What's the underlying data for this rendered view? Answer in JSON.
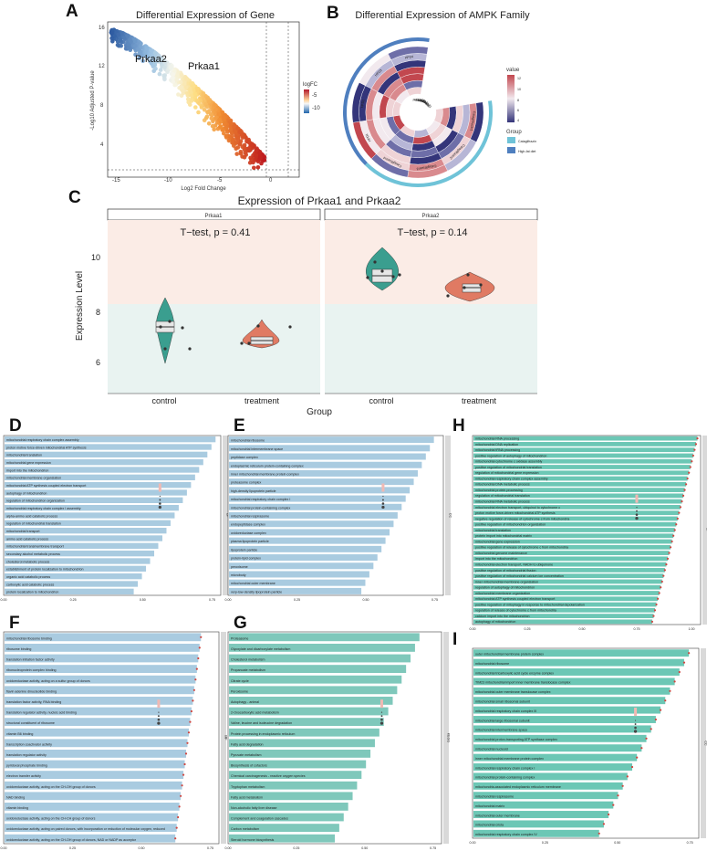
{
  "panels": {
    "a": "A",
    "b": "B",
    "c": "C",
    "d": "D",
    "e": "E",
    "f": "F",
    "g": "G",
    "h": "H",
    "i": "I"
  },
  "panel_a": {
    "title": "Differential Expression of Gene",
    "xlabel": "Log2 Fold Change",
    "ylabel": "-Log10 Adjusted P-value",
    "legend_title": "logFC",
    "legend_ticks": [
      "-5",
      "-10"
    ],
    "x_ticks": [
      "-15",
      "-10",
      "-5",
      "0"
    ],
    "y_ticks": [
      "16",
      "12",
      "8",
      "4"
    ],
    "labels": [
      "Prkaa2",
      "Prkaa1"
    ]
  },
  "panel_b": {
    "title": "Differential Expression of AMPK Family",
    "legend_value_title": "value",
    "legend_value_ticks": [
      "12",
      "10",
      "8",
      "6",
      "4"
    ],
    "legend_group_title": "Group",
    "groups": [
      "Cataglifrazin",
      "High-fat diet"
    ],
    "sample_labels": [
      "Cataglifrazin1",
      "Cataglifrazin2",
      "Cataglifrazin3",
      "Cataglifrazin4",
      "HFD1",
      "HFD2",
      "HFD3",
      "HFD4"
    ],
    "genes": [
      "Prkaa1",
      "Prkaa2",
      "Prkab1",
      "Prkab2",
      "Prkag1",
      "Prkag2",
      "Prkag3"
    ]
  },
  "panel_c": {
    "title": "Expression of Prkaa1 and Prkaa2",
    "ylabel": "Expression Level",
    "xlabel": "Group",
    "y_ticks": [
      "10",
      "8",
      "6"
    ],
    "facets": [
      {
        "name": "Prkaa1",
        "test": "T−test, p = 0.41"
      },
      {
        "name": "Prkaa2",
        "test": "T−test, p = 0.14"
      }
    ],
    "categories": [
      "control",
      "treatment"
    ]
  },
  "panel_d": {
    "terms": [
      "mitochondrial respiratory chain complex assembly",
      "proton motive force-driven mitochondrial ATP synthesis",
      "mitochondrial translation",
      "mitochondrial gene expression",
      "import into the mitochondrion",
      "mitochondrial membrane organization",
      "mitochondrial ATP synthesis coupled electron transport",
      "autophagy of mitochondrion",
      "regulation of mitochondrion organization",
      "mitochondrial respiratory chain complex I assembly",
      "alpha-amino acid catabolic process",
      "regulation of mitochondrial translation",
      "mitochondrial transport",
      "amino acid catabolic process",
      "mitochondrial transmembrane transport",
      "secondary alcohol metabolic process",
      "cholesterol metabolic process",
      "establishment of protein localization to mitochondrion",
      "organic acid catabolic process",
      "carboxylic acid catabolic process",
      "protein localization to mitochondrion"
    ],
    "tag": "BP",
    "axis": [
      "0.00",
      "0.25",
      "0.50",
      "0.75"
    ]
  },
  "panel_e": {
    "terms": [
      "mitochondrial ribosome",
      "mitochondrial intermembrane space",
      "peptidase complex",
      "endoplasmic reticulum protein-containing complex",
      "inner mitochondrial membrane protein complex",
      "proteasome complex",
      "high-density lipoprotein particle",
      "mitochondrial respiratory chain complex I",
      "mitochondrial protein-containing complex",
      "mitochondrial respirasome",
      "endopeptidase complex",
      "oxidoreductase complex",
      "plasma lipoprotein particle",
      "lipoprotein particle",
      "protein-lipid complex",
      "peroxisome",
      "microbody",
      "mitochondrial outer membrane",
      "very-low-density lipoprotein particle"
    ],
    "tag": "CC",
    "axis": [
      "0.00",
      "0.25",
      "0.50",
      "0.75"
    ]
  },
  "panel_f": {
    "terms": [
      "mitochondrial ribosome binding",
      "ribosome binding",
      "translation initiation factor activity",
      "ribonucleoprotein complex binding",
      "oxidoreductase activity, acting on a sulfur group of donors",
      "flavin adenine dinucleotide binding",
      "translation factor activity, RNA binding",
      "translation regulator activity, nucleic acid binding",
      "structural constituent of ribosome",
      "vitamin B6 binding",
      "transcription coactivator activity",
      "translation regulator activity",
      "pyridoxal phosphate binding",
      "electron transfer activity",
      "oxidoreductase activity, acting on the CH-OH group of donors",
      "NAD binding",
      "vitamin binding",
      "oxidoreductase activity, acting on the CH-CH group of donors",
      "oxidoreductase activity, acting on paired donors, with incorporation or reduction of molecular oxygen, reduced",
      "oxidoreductase activity, acting on the CH-OH group of donors, NAD or NADP as acceptor"
    ],
    "tag": "MF",
    "axis": [
      "0.00",
      "0.25",
      "0.50",
      "0.75"
    ]
  },
  "panel_g": {
    "terms": [
      "Proteasome",
      "Glyoxylate and dicarboxylate metabolism",
      "Cholesterol metabolism",
      "Propanoate metabolism",
      "Citrate cycle",
      "Peroxisome",
      "Autophagy - animal",
      "2-Oxocarboxylic acid metabolism",
      "Valine, leucine and isoleucine degradation",
      "Protein processing in endoplasmic reticulum",
      "Fatty acid degradation",
      "Pyruvate metabolism",
      "Biosynthesis of cofactors",
      "Chemical carcinogenesis - reactive oxygen species",
      "Tryptophan metabolism",
      "Fatty acid metabolism",
      "Non-alcoholic fatty liver disease",
      "Complement and coagulation cascades",
      "Carbon metabolism",
      "Steroid hormone biosynthesis"
    ],
    "tag": "KEGG",
    "axis": [
      "0.00",
      "0.25",
      "0.50",
      "0.75"
    ]
  },
  "panel_h": {
    "terms": [
      "mitochondrial RNA processing",
      "mitochondrial DNA replication",
      "mitochondrial tRNA processing",
      "positive regulation of autophagy of mitochondrion",
      "mitochondrial cytochrome c oxidase assembly",
      "positive regulation of mitochondrial translation",
      "regulation of mitochondrial gene expression",
      "mitochondrial respiratory chain complex assembly",
      "mitochondrial DNA metabolic process",
      "mitochondrial protein processing",
      "regulation of mitochondrial translation",
      "mitochondrial RNA metabolic process",
      "mitochondrial electron transport, ubiquinol to cytochrome c",
      "proton motive force-driven mitochondrial ATP synthesis",
      "negative regulation of release of cytochrome c from mitochondria",
      "positive regulation of mitochondrion organization",
      "mitochondrial translation",
      "protein import into mitochondrial matrix",
      "mitochondrial gene expression",
      "positive regulation of release of cytochrome c from mitochondria",
      "mitochondrial genome maintenance",
      "import into the mitochondrion",
      "mitochondrial electron transport, NADH to ubiquinone",
      "positive regulation of mitochondrial fission",
      "positive regulation of mitochondrial calcium ion concentration",
      "inner mitochondrial membrane organization",
      "regulation of autophagy of mitochondrion",
      "mitochondrial membrane organization",
      "mitochondrial ATP synthesis coupled electron transport",
      "positive regulation of mitophagy in response to mitochondrial depolarization",
      "regulation of release of cytochrome c from mitochondria",
      "calcium import into the mitochondrion",
      "autophagy of mitochondrion"
    ],
    "tag": "BP",
    "axis": [
      "0.00",
      "0.25",
      "0.50",
      "0.75",
      "1.00"
    ]
  },
  "panel_i": {
    "terms": [
      "outer mitochondrial membrane protein complex",
      "mitochondrial ribosome",
      "mitochondrial tricarboxylic acid cycle enzyme complex",
      "TIM23 mitochondrial import inner membrane translocase complex",
      "mitochondrial outer membrane translocase complex",
      "mitochondrial small ribosomal subunit",
      "mitochondrial respiratory chain complex III",
      "mitochondrial large ribosomal subunit",
      "mitochondrial intermembrane space",
      "mitochondrial proton-transporting ATP synthase complex",
      "mitochondrial nucleoid",
      "inner mitochondrial membrane protein complex",
      "mitochondrial respiratory chain complex I",
      "mitochondrial protein-containing complex",
      "mitochondria-associated endoplasmic reticulum membrane",
      "mitochondrial respirasome",
      "mitochondrial matrix",
      "mitochondrial outer membrane",
      "mitochondrial crista",
      "mitochondrial respiratory chain complex IV"
    ],
    "tag": "CC",
    "axis": [
      "0.00",
      "0.25",
      "0.50",
      "0.75"
    ]
  }
}
